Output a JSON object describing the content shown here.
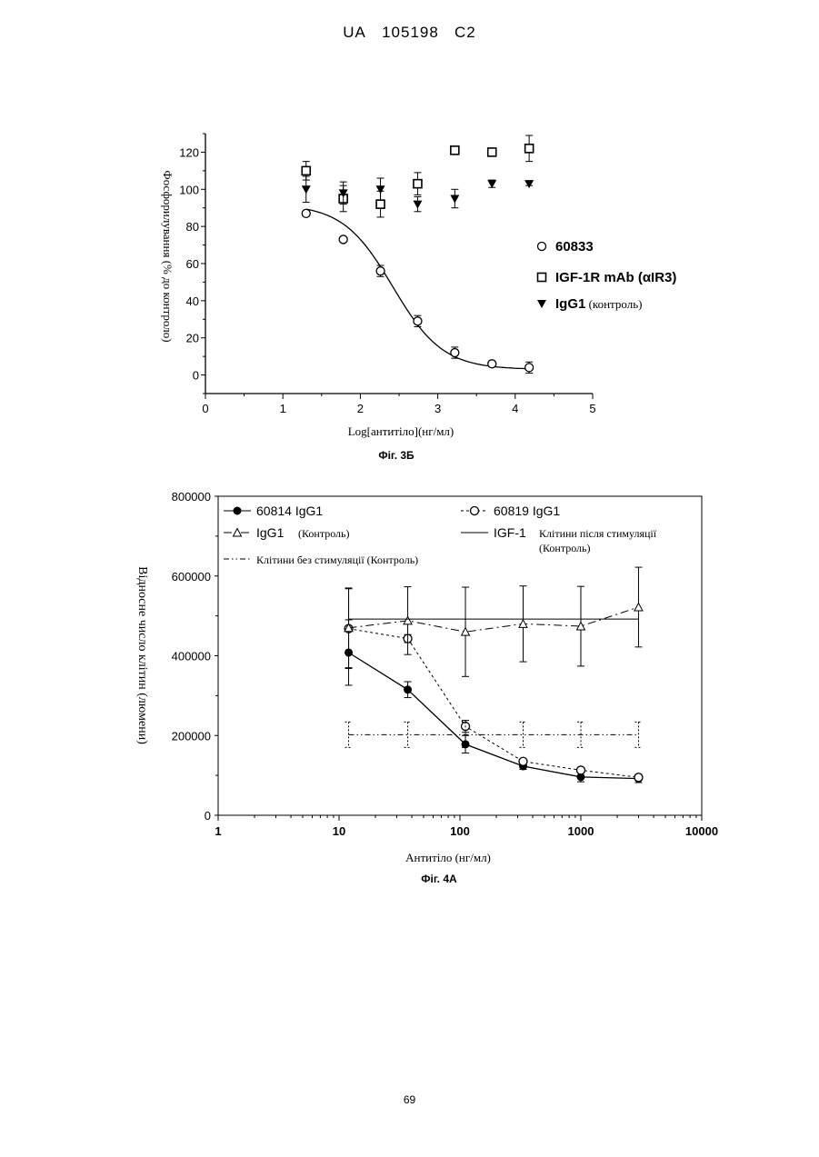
{
  "header": {
    "doc": "UA",
    "number": "105198",
    "code": "C2"
  },
  "page_number": "69",
  "chart_data": [
    {
      "type": "scatter",
      "caption": "Фіг. 3Б",
      "xlabel": "Log[антитіло](нг/мл)",
      "ylabel": "Фосфорилування (% до контроло)",
      "xlim": [
        0,
        5
      ],
      "ylim": [
        -10,
        130
      ],
      "xticks": [
        0,
        1,
        2,
        3,
        4,
        5
      ],
      "yticks": [
        0,
        20,
        40,
        60,
        80,
        100,
        120
      ],
      "series": [
        {
          "name": "60833",
          "name_suffix": "",
          "marker": "circle",
          "x": [
            1.3,
            1.78,
            2.26,
            2.74,
            3.22,
            3.7,
            4.18
          ],
          "y": [
            87,
            73,
            56,
            29,
            12,
            6,
            4
          ],
          "err": [
            0,
            0,
            3,
            3,
            3,
            1,
            3
          ],
          "fit": true
        },
        {
          "name": "IGF-1R mAb (αIR3)",
          "name_suffix": "",
          "marker": "square",
          "x": [
            1.3,
            1.78,
            2.26,
            2.74,
            3.22,
            3.7,
            4.18
          ],
          "y": [
            110,
            95,
            92,
            103,
            121,
            120,
            122
          ],
          "err": [
            5,
            7,
            7,
            6,
            1,
            2,
            7
          ],
          "fit": false
        },
        {
          "name": "IgG1",
          "name_suffix": "(контроль)",
          "marker": "triangle-down",
          "x": [
            1.3,
            1.78,
            2.26,
            2.74,
            3.22,
            3.7,
            4.18
          ],
          "y": [
            100,
            98,
            100,
            92,
            95,
            103,
            103
          ],
          "err": [
            7,
            6,
            6,
            4,
            5,
            2,
            1
          ],
          "fit": false
        }
      ]
    },
    {
      "type": "line",
      "caption": "Фіг. 4А",
      "xlabel": "Антитіло (нг/мл)",
      "ylabel": "Відносне число клітин (люмени)",
      "xscale": "log",
      "xlim": [
        1,
        10000
      ],
      "ylim": [
        0,
        800000
      ],
      "xticks": [
        "1",
        "10",
        "100",
        "1000",
        "10000"
      ],
      "yticks": [
        "0",
        "200000",
        "400000",
        "600000",
        "800000"
      ],
      "series": [
        {
          "name": "60814 IgG1",
          "style": "solid",
          "marker": "filled-circle",
          "x": [
            12,
            37,
            111,
            333,
            1000,
            3000
          ],
          "y": [
            408000,
            315000,
            178000,
            123000,
            96000,
            92000
          ],
          "err": [
            82000,
            20000,
            22000,
            8000,
            12000,
            10000
          ]
        },
        {
          "name": "60819 IgG1",
          "style": "dotted",
          "marker": "open-circle",
          "x": [
            12,
            37,
            111,
            333,
            1000,
            3000
          ],
          "y": [
            468000,
            443000,
            223000,
            135000,
            113000,
            95000
          ],
          "err": [
            100000,
            10000,
            15000,
            6000,
            5000,
            5000
          ]
        },
        {
          "name": "IgG1",
          "name_suffix": "(Контроль)",
          "style": "dashdot",
          "marker": "open-triangle",
          "x": [
            12,
            37,
            111,
            333,
            1000,
            3000
          ],
          "y": [
            470000,
            488000,
            460000,
            480000,
            474000,
            522000
          ],
          "err": [
            100000,
            85000,
            112000,
            95000,
            100000,
            100000
          ]
        },
        {
          "name": "IGF-1",
          "name_suffix": "Клітини після стимуляції (Контроль)",
          "style": "thin-solid",
          "marker": "none",
          "x": [
            12,
            3000
          ],
          "y": [
            492000,
            492000
          ],
          "err": [
            0,
            0
          ]
        },
        {
          "name": "Клітини без стимуляції (Контроль)",
          "style": "dashdotdot",
          "marker": "none",
          "x": [
            12,
            37,
            111,
            333,
            1000,
            3000
          ],
          "y": [
            202000,
            202000,
            202000,
            202000,
            202000,
            202000
          ],
          "err": [
            32000,
            32000,
            32000,
            32000,
            32000,
            32000
          ]
        }
      ]
    }
  ]
}
